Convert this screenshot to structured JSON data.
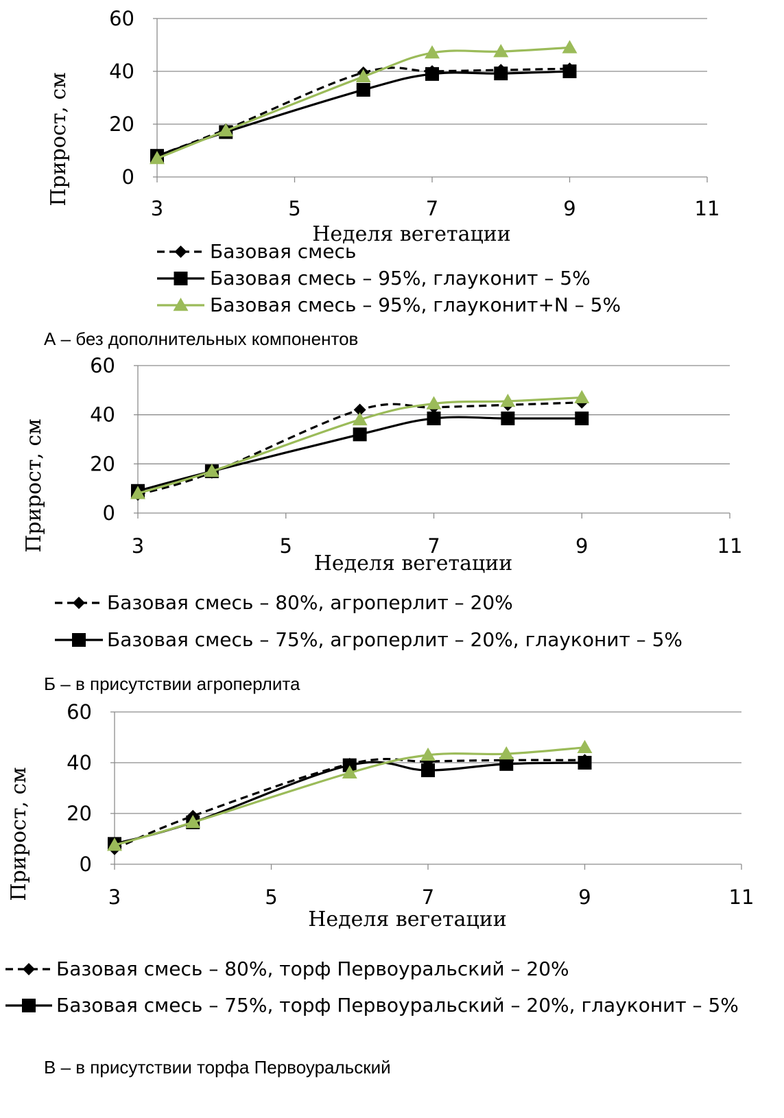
{
  "chart_data": [
    {
      "type": "line",
      "caption": "А – без дополнительных компонентов",
      "xlabel": "Неделя вегетации",
      "ylabel": "Прирост, см",
      "xlim": [
        3,
        11
      ],
      "ylim": [
        0,
        60
      ],
      "xticks": [
        3,
        5,
        7,
        9,
        11
      ],
      "yticks": [
        0,
        20,
        40,
        60
      ],
      "grid": "horizontal",
      "legend_position": "bottom",
      "series": [
        {
          "name": "Базовая смесь",
          "style": "dashed",
          "marker": "diamond",
          "color": "#000000",
          "x": [
            3,
            4,
            6,
            7,
            8,
            9
          ],
          "y": [
            8,
            18,
            39.5,
            40,
            40.5,
            41
          ]
        },
        {
          "name": "Базовая смесь – 95%, глауконит – 5%",
          "style": "solid",
          "marker": "square",
          "color": "#000000",
          "x": [
            3,
            4,
            6,
            7,
            8,
            9
          ],
          "y": [
            8,
            17,
            33,
            39,
            39.2,
            40
          ]
        },
        {
          "name": "Базовая смесь – 95%, глауконит+N – 5%",
          "style": "solid",
          "marker": "triangle",
          "color": "#9BBB59",
          "x": [
            3,
            4,
            6,
            7,
            8,
            9
          ],
          "y": [
            7,
            17.5,
            38,
            47,
            47.5,
            49
          ]
        }
      ]
    },
    {
      "type": "line",
      "caption": "Б – в присутствии агроперлита",
      "xlabel": "Неделя вегетации",
      "ylabel": "Прирост, см",
      "xlim": [
        3,
        11
      ],
      "ylim": [
        0,
        60
      ],
      "xticks": [
        3,
        5,
        7,
        9,
        11
      ],
      "yticks": [
        0,
        20,
        40,
        60
      ],
      "grid": "horizontal",
      "legend_position": "bottom",
      "series": [
        {
          "name": "Базовая смесь – 80%, агроперлит – 20%",
          "style": "dashed",
          "marker": "diamond",
          "color": "#000000",
          "x": [
            3,
            4,
            6,
            7,
            8,
            9
          ],
          "y": [
            7.5,
            16.5,
            42,
            43,
            44,
            45
          ]
        },
        {
          "name": "Базовая смесь – 75%, агроперлит – 20%, глауконит – 5%",
          "style": "solid",
          "marker": "square",
          "color": "#000000",
          "x": [
            3,
            4,
            6,
            7,
            8,
            9
          ],
          "y": [
            9,
            17,
            32,
            38.5,
            38.5,
            38.5
          ]
        },
        {
          "style": "solid",
          "marker": "triangle",
          "color": "#9BBB59",
          "x": [
            3,
            4,
            6,
            7,
            8,
            9
          ],
          "y": [
            8,
            17,
            38,
            44.5,
            45.5,
            47
          ]
        }
      ]
    },
    {
      "type": "line",
      "caption": "В – в присутствии торфа Первоуральский",
      "xlabel": "Неделя вегетации",
      "ylabel": "Прирост, см",
      "xlim": [
        3,
        11
      ],
      "ylim": [
        0,
        60
      ],
      "xticks": [
        3,
        5,
        7,
        9,
        11
      ],
      "yticks": [
        0,
        20,
        40,
        60
      ],
      "grid": "horizontal",
      "legend_position": "bottom",
      "series": [
        {
          "name": "Базовая смесь – 80%, торф Первоуральский – 20%",
          "style": "dashed",
          "marker": "diamond",
          "color": "#000000",
          "x": [
            3,
            4,
            6,
            7,
            8,
            9
          ],
          "y": [
            6,
            19,
            39.5,
            40.5,
            41,
            41
          ]
        },
        {
          "name": "Базовая смесь – 75%, торф Первоуральский – 20%, глауконит – 5%",
          "style": "solid",
          "marker": "square",
          "color": "#000000",
          "x": [
            3,
            4,
            6,
            7,
            8,
            9
          ],
          "y": [
            8,
            16.5,
            39,
            37,
            39.5,
            40
          ]
        },
        {
          "style": "solid",
          "marker": "triangle",
          "color": "#9BBB59",
          "x": [
            3,
            4,
            6,
            7,
            8,
            9
          ],
          "y": [
            7.5,
            16.5,
            36,
            43,
            43.5,
            46
          ]
        }
      ]
    }
  ]
}
